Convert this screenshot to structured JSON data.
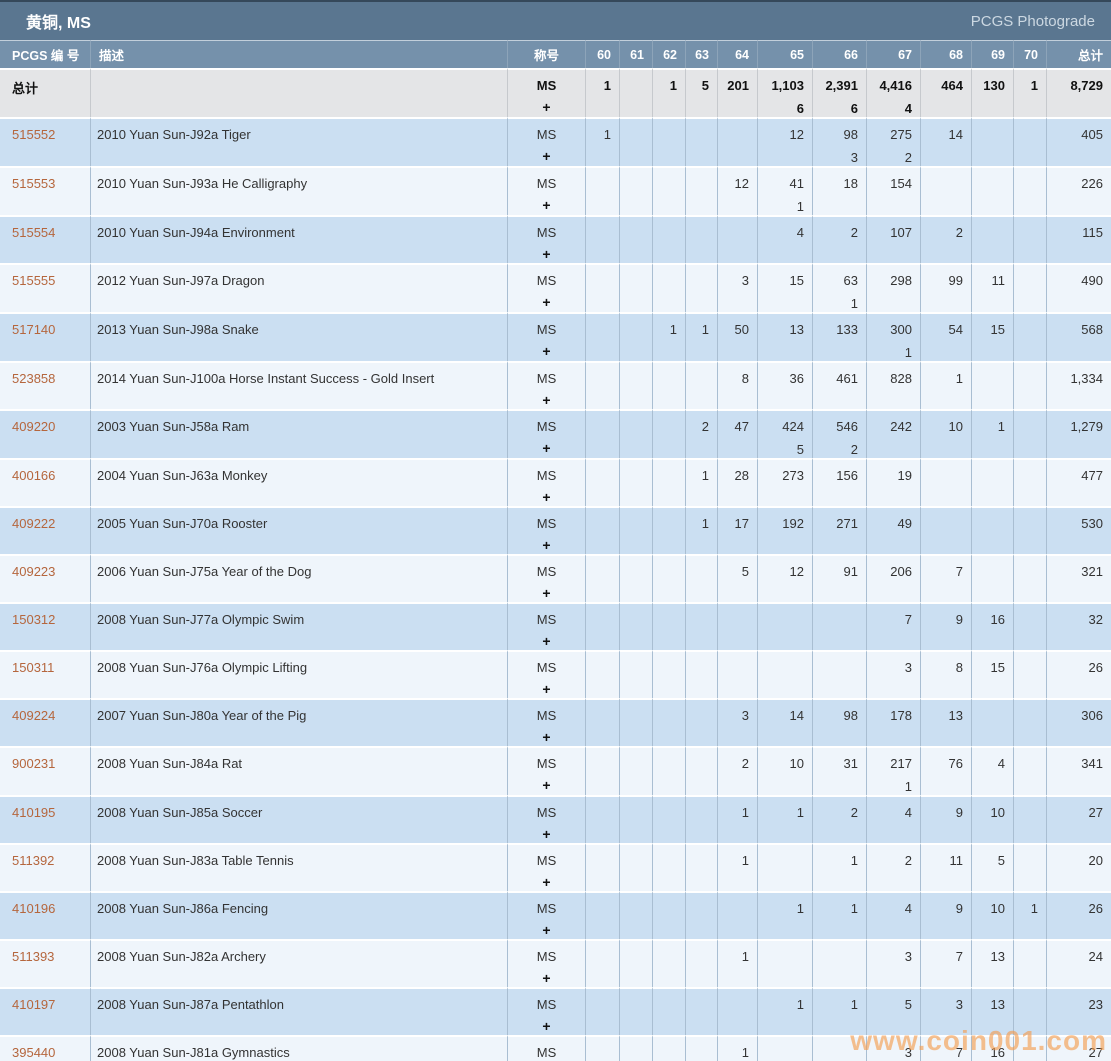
{
  "header": {
    "title": "黄铜, MS",
    "link_label": "PCGS Photograde"
  },
  "columns": {
    "pcgs_no": "PCGS 编 号",
    "description": "描述",
    "designation": "称号",
    "grades": [
      "60",
      "61",
      "62",
      "63",
      "64",
      "65",
      "66",
      "67",
      "68",
      "69",
      "70"
    ],
    "total": "总计"
  },
  "designation": {
    "line1": "MS",
    "line2": "+"
  },
  "totals": {
    "label": "总计",
    "grades": [
      [
        "1"
      ],
      [],
      [
        "1"
      ],
      [
        "5"
      ],
      [
        "201"
      ],
      [
        "1,103",
        "6"
      ],
      [
        "2,391",
        "6"
      ],
      [
        "4,416",
        "4"
      ],
      [
        "464"
      ],
      [
        "130"
      ],
      [
        "1"
      ]
    ],
    "total": "8,729"
  },
  "rows": [
    {
      "pcgs_no": "515552",
      "description": "2010 Yuan Sun-J92a Tiger",
      "grades": [
        [
          "1"
        ],
        [],
        [],
        [],
        [],
        [
          "12"
        ],
        [
          "98",
          "3"
        ],
        [
          "275",
          "2"
        ],
        [
          "14"
        ],
        [],
        []
      ],
      "total": "405"
    },
    {
      "pcgs_no": "515553",
      "description": "2010 Yuan Sun-J93a He Calligraphy",
      "grades": [
        [],
        [],
        [],
        [],
        [
          "12"
        ],
        [
          "41",
          "1"
        ],
        [
          "18"
        ],
        [
          "154"
        ],
        [],
        [],
        []
      ],
      "total": "226"
    },
    {
      "pcgs_no": "515554",
      "description": "2010 Yuan Sun-J94a Environment",
      "grades": [
        [],
        [],
        [],
        [],
        [],
        [
          "4"
        ],
        [
          "2"
        ],
        [
          "107"
        ],
        [
          "2"
        ],
        [],
        []
      ],
      "total": "115"
    },
    {
      "pcgs_no": "515555",
      "description": "2012 Yuan Sun-J97a Dragon",
      "grades": [
        [],
        [],
        [],
        [],
        [
          "3"
        ],
        [
          "15"
        ],
        [
          "63",
          "1"
        ],
        [
          "298"
        ],
        [
          "99"
        ],
        [
          "11"
        ],
        []
      ],
      "total": "490"
    },
    {
      "pcgs_no": "517140",
      "description": "2013 Yuan Sun-J98a Snake",
      "grades": [
        [],
        [],
        [
          "1"
        ],
        [
          "1"
        ],
        [
          "50"
        ],
        [
          "13"
        ],
        [
          "133"
        ],
        [
          "300",
          "1"
        ],
        [
          "54"
        ],
        [
          "15"
        ],
        []
      ],
      "total": "568"
    },
    {
      "pcgs_no": "523858",
      "description": "2014 Yuan Sun-J100a Horse Instant Success - Gold Insert",
      "grades": [
        [],
        [],
        [],
        [],
        [
          "8"
        ],
        [
          "36"
        ],
        [
          "461"
        ],
        [
          "828"
        ],
        [
          "1"
        ],
        [],
        []
      ],
      "total": "1,334"
    },
    {
      "pcgs_no": "409220",
      "description": "2003 Yuan Sun-J58a Ram",
      "grades": [
        [],
        [],
        [],
        [
          "2"
        ],
        [
          "47"
        ],
        [
          "424",
          "5"
        ],
        [
          "546",
          "2"
        ],
        [
          "242"
        ],
        [
          "10"
        ],
        [
          "1"
        ],
        []
      ],
      "total": "1,279"
    },
    {
      "pcgs_no": "400166",
      "description": "2004 Yuan Sun-J63a Monkey",
      "grades": [
        [],
        [],
        [],
        [
          "1"
        ],
        [
          "28"
        ],
        [
          "273"
        ],
        [
          "156"
        ],
        [
          "19"
        ],
        [],
        [],
        []
      ],
      "total": "477"
    },
    {
      "pcgs_no": "409222",
      "description": "2005 Yuan Sun-J70a Rooster",
      "grades": [
        [],
        [],
        [],
        [
          "1"
        ],
        [
          "17"
        ],
        [
          "192"
        ],
        [
          "271"
        ],
        [
          "49"
        ],
        [],
        [],
        []
      ],
      "total": "530"
    },
    {
      "pcgs_no": "409223",
      "description": "2006 Yuan Sun-J75a Year of the Dog",
      "grades": [
        [],
        [],
        [],
        [],
        [
          "5"
        ],
        [
          "12"
        ],
        [
          "91"
        ],
        [
          "206"
        ],
        [
          "7"
        ],
        [],
        []
      ],
      "total": "321"
    },
    {
      "pcgs_no": "150312",
      "description": "2008 Yuan Sun-J77a Olympic Swim",
      "grades": [
        [],
        [],
        [],
        [],
        [],
        [],
        [],
        [
          "7"
        ],
        [
          "9"
        ],
        [
          "16"
        ],
        []
      ],
      "total": "32"
    },
    {
      "pcgs_no": "150311",
      "description": "2008 Yuan Sun-J76a Olympic Lifting",
      "grades": [
        [],
        [],
        [],
        [],
        [],
        [],
        [],
        [
          "3"
        ],
        [
          "8"
        ],
        [
          "15"
        ],
        []
      ],
      "total": "26"
    },
    {
      "pcgs_no": "409224",
      "description": "2007 Yuan Sun-J80a Year of the Pig",
      "grades": [
        [],
        [],
        [],
        [],
        [
          "3"
        ],
        [
          "14"
        ],
        [
          "98"
        ],
        [
          "178"
        ],
        [
          "13"
        ],
        [],
        []
      ],
      "total": "306"
    },
    {
      "pcgs_no": "900231",
      "description": "2008 Yuan Sun-J84a Rat",
      "grades": [
        [],
        [],
        [],
        [],
        [
          "2"
        ],
        [
          "10"
        ],
        [
          "31"
        ],
        [
          "217",
          "1"
        ],
        [
          "76"
        ],
        [
          "4"
        ],
        []
      ],
      "total": "341"
    },
    {
      "pcgs_no": "410195",
      "description": "2008 Yuan Sun-J85a Soccer",
      "grades": [
        [],
        [],
        [],
        [],
        [
          "1"
        ],
        [
          "1"
        ],
        [
          "2"
        ],
        [
          "4"
        ],
        [
          "9"
        ],
        [
          "10"
        ],
        []
      ],
      "total": "27"
    },
    {
      "pcgs_no": "511392",
      "description": "2008 Yuan Sun-J83a Table Tennis",
      "grades": [
        [],
        [],
        [],
        [],
        [
          "1"
        ],
        [],
        [
          "1"
        ],
        [
          "2"
        ],
        [
          "11"
        ],
        [
          "5"
        ],
        []
      ],
      "total": "20"
    },
    {
      "pcgs_no": "410196",
      "description": "2008 Yuan Sun-J86a Fencing",
      "grades": [
        [],
        [],
        [],
        [],
        [],
        [
          "1"
        ],
        [
          "1"
        ],
        [
          "4"
        ],
        [
          "9"
        ],
        [
          "10"
        ],
        [
          "1"
        ]
      ],
      "total": "26"
    },
    {
      "pcgs_no": "511393",
      "description": "2008 Yuan Sun-J82a Archery",
      "grades": [
        [],
        [],
        [],
        [],
        [
          "1"
        ],
        [],
        [],
        [
          "3"
        ],
        [
          "7"
        ],
        [
          "13"
        ],
        []
      ],
      "total": "24"
    },
    {
      "pcgs_no": "410197",
      "description": "2008 Yuan Sun-J87a Pentathlon",
      "grades": [
        [],
        [],
        [],
        [],
        [],
        [
          "1"
        ],
        [
          "1"
        ],
        [
          "5"
        ],
        [
          "3"
        ],
        [
          "13"
        ],
        []
      ],
      "total": "23"
    },
    {
      "pcgs_no": "395440",
      "description": "2008 Yuan Sun-J81a Gymnastics",
      "grades": [
        [],
        [],
        [],
        [],
        [
          "1"
        ],
        [],
        [],
        [
          "3"
        ],
        [
          "7"
        ],
        [
          "16"
        ],
        []
      ],
      "total": "27"
    }
  ],
  "watermark": "www.coin001.com",
  "colors": {
    "title_bar": "#5a7690",
    "header_row": "#7591ab",
    "row_alt": "#cbdff2",
    "row_base": "#eff5fb",
    "totals_row": "#e4e5e7",
    "pcgs_link": "#b5663d",
    "watermark": "#f59b4b"
  }
}
